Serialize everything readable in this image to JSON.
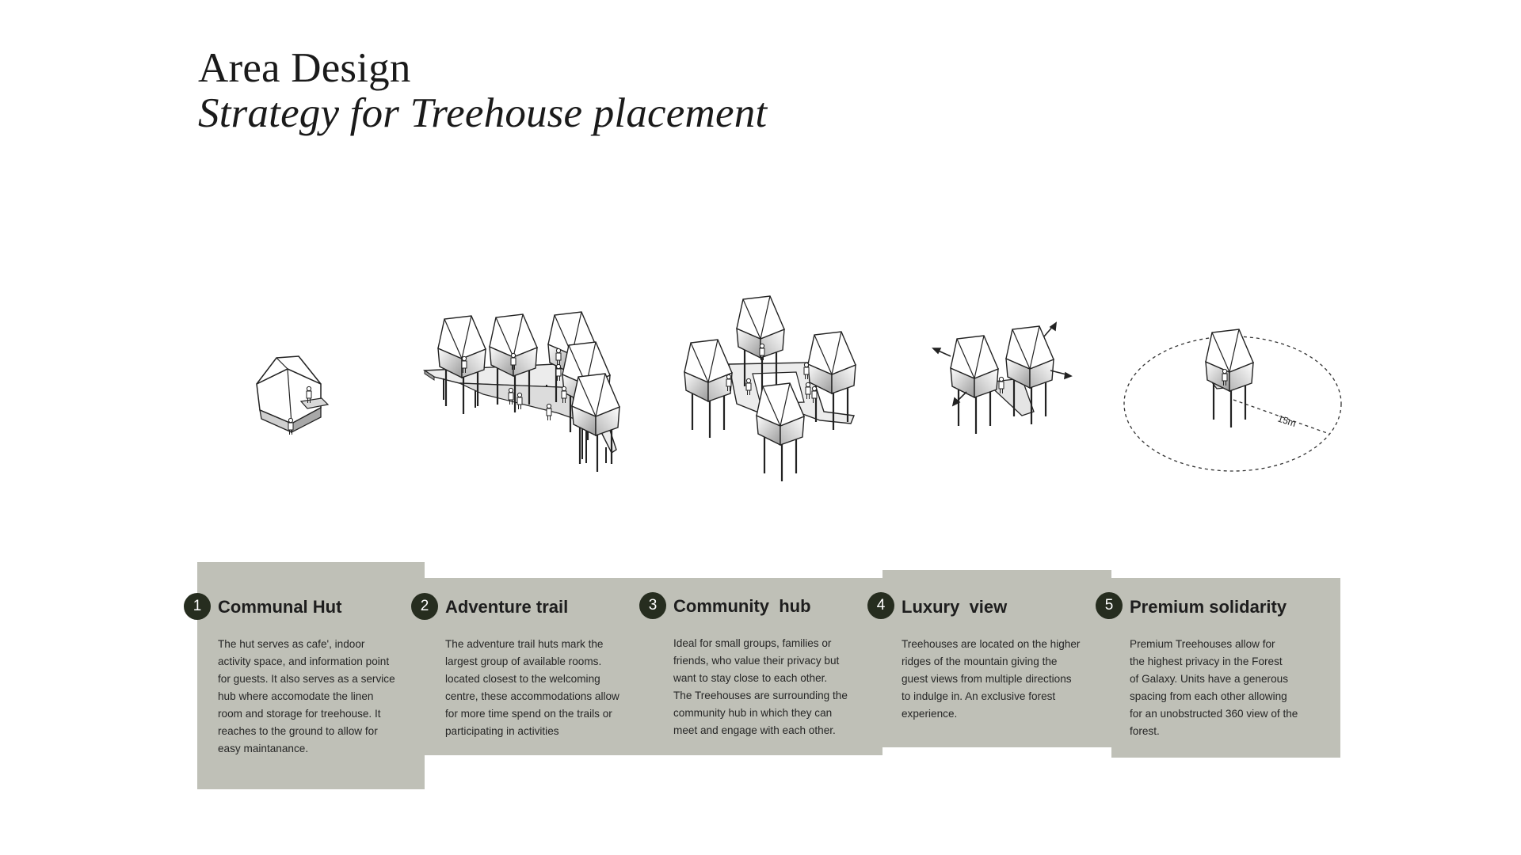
{
  "header": {
    "title": "Area Design",
    "subtitle": "Strategy for Treehouse placement"
  },
  "diagrams": {
    "distance_label": "15m"
  },
  "cards": [
    {
      "number": "1",
      "title": "Communal Hut",
      "text": "The hut serves as cafe', indoor\nactivity space, and information point\nfor guests. It also serves as a service\nhub where accomodate the linen\nroom and storage for treehouse. It\nreaches to the ground to allow for\neasy maintanance."
    },
    {
      "number": "2",
      "title": "Adventure trail",
      "text": "The adventure trail huts mark the\nlargest group of available rooms.\nlocated closest to the welcoming\ncentre, these accommodations allow\nfor more time spend on the trails or\nparticipating in activities"
    },
    {
      "number": "3",
      "title": "Community  hub",
      "text": "Ideal for small groups, families or\nfriends, who value their privacy but\nwant to stay close to each other.\nThe Treehouses are surrounding the\ncommunity hub in which they can\nmeet and engage with each other."
    },
    {
      "number": "4",
      "title": "Luxury  view",
      "text": "Treehouses are located on the higher\nridges of the mountain giving the\nguest views from multiple directions\nto indulge in. An exclusive forest\nexperience."
    },
    {
      "number": "5",
      "title": "Premium solidarity",
      "text": "Premium Treehouses allow for\nthe highest privacy in the Forest\nof Galaxy. Units have a generous\nspacing from each other allowing\nfor an unobstructed 360 view of the\nforest."
    }
  ],
  "colors": {
    "panel": "#bfc0b7",
    "badge": "#262d1f",
    "ink": "#1e1e1e"
  }
}
